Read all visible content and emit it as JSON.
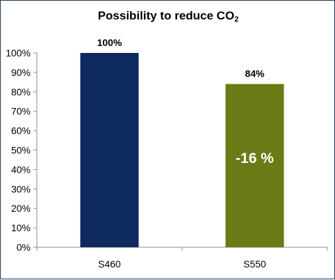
{
  "chart_data": {
    "type": "bar",
    "title_main": "Possibility to reduce CO",
    "title_sub": "2",
    "categories": [
      "S460",
      "S550"
    ],
    "values": [
      100,
      84
    ],
    "data_labels": [
      "100%",
      "84%"
    ],
    "ylim": [
      0,
      100
    ],
    "yticks": [
      0,
      10,
      20,
      30,
      40,
      50,
      60,
      70,
      80,
      90,
      100
    ],
    "ytick_labels": [
      "0%",
      "10%",
      "20%",
      "30%",
      "40%",
      "50%",
      "60%",
      "70%",
      "80%",
      "90%",
      "100%"
    ],
    "bar_colors": [
      "#0e2a5e",
      "#6b7a15"
    ],
    "annotation": {
      "category": "S550",
      "text": "-16 %"
    },
    "grid": false,
    "legend": "none"
  },
  "frame_color": "#1f3864"
}
